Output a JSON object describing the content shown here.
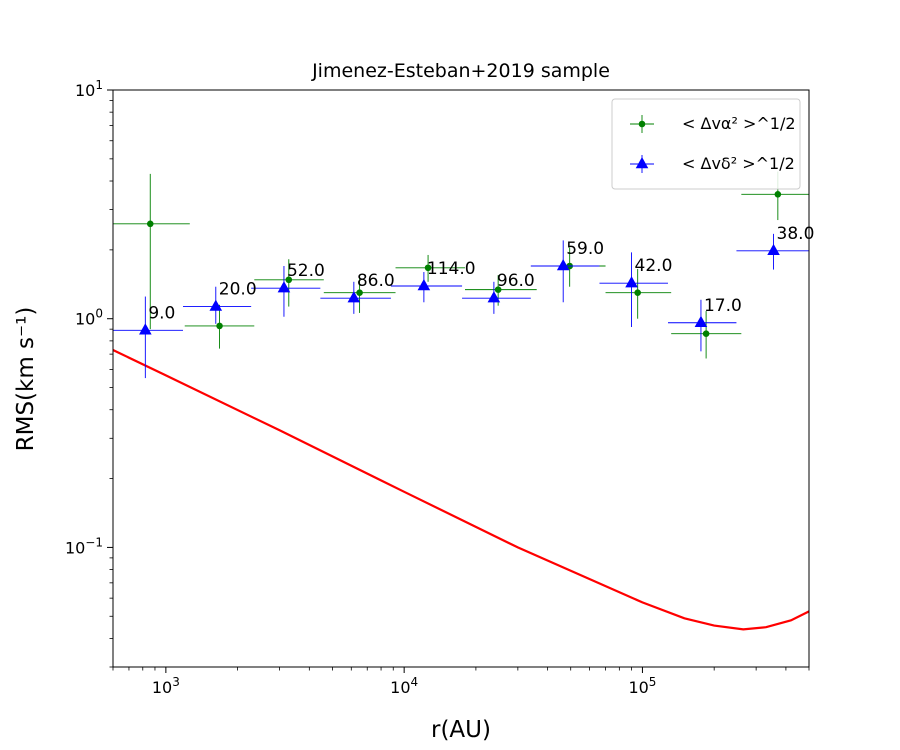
{
  "chart_data": {
    "type": "scatter",
    "title": "Jimenez-Esteban+2019 sample",
    "xlabel": "r(AU)",
    "ylabel": "RMS(km s⁻¹)",
    "xscale": "log",
    "yscale": "log",
    "xlim": [
      600,
      500000
    ],
    "ylim": [
      0.03,
      10
    ],
    "grid": false,
    "legend_position": "top-right",
    "x_major_ticks": [
      {
        "value": 1000,
        "base": "10",
        "exp": "3"
      },
      {
        "value": 10000,
        "base": "10",
        "exp": "4"
      },
      {
        "value": 100000,
        "base": "10",
        "exp": "5"
      }
    ],
    "y_major_ticks": [
      {
        "value": 0.1,
        "base": "10",
        "exp": "−1"
      },
      {
        "value": 1,
        "base": "10",
        "exp": "0"
      },
      {
        "value": 10,
        "base": "10",
        "exp": "1"
      }
    ],
    "series": [
      {
        "name": "< Δvα² >^1/2",
        "color": "#008000",
        "marker": "circle",
        "points": [
          {
            "x": 860,
            "y": 2.6,
            "x_lo": 590,
            "x_hi": 1260,
            "y_lo": 0.9,
            "y_hi": 4.3
          },
          {
            "x": 1680,
            "y": 0.93,
            "x_lo": 1200,
            "x_hi": 2350,
            "y_lo": 0.74,
            "y_hi": 1.15
          },
          {
            "x": 3280,
            "y": 1.48,
            "x_lo": 2350,
            "x_hi": 4600,
            "y_lo": 1.13,
            "y_hi": 1.82
          },
          {
            "x": 6500,
            "y": 1.3,
            "x_lo": 4600,
            "x_hi": 9200,
            "y_lo": 1.06,
            "y_hi": 1.55
          },
          {
            "x": 12600,
            "y": 1.67,
            "x_lo": 9200,
            "x_hi": 18000,
            "y_lo": 1.45,
            "y_hi": 1.9
          },
          {
            "x": 24800,
            "y": 1.34,
            "x_lo": 18000,
            "x_hi": 36000,
            "y_lo": 1.14,
            "y_hi": 1.55
          },
          {
            "x": 49500,
            "y": 1.7,
            "x_lo": 36000,
            "x_hi": 70000,
            "y_lo": 1.38,
            "y_hi": 2.05
          },
          {
            "x": 95500,
            "y": 1.3,
            "x_lo": 70000,
            "x_hi": 132000,
            "y_lo": 1.0,
            "y_hi": 1.65
          },
          {
            "x": 185000,
            "y": 0.86,
            "x_lo": 132000,
            "x_hi": 260000,
            "y_lo": 0.67,
            "y_hi": 1.08
          },
          {
            "x": 370000,
            "y": 3.5,
            "x_lo": 260000,
            "x_hi": 500000,
            "y_lo": 2.7,
            "y_hi": 4.4
          }
        ]
      },
      {
        "name": "< Δvδ² >^1/2",
        "color": "#0000ff",
        "marker": "triangle",
        "points": [
          {
            "x": 820,
            "y": 0.89,
            "x_lo": 590,
            "x_hi": 1180,
            "y_lo": 0.55,
            "y_hi": 1.25,
            "label": "9.0"
          },
          {
            "x": 1620,
            "y": 1.13,
            "x_lo": 1180,
            "x_hi": 2280,
            "y_lo": 0.95,
            "y_hi": 1.38,
            "label": "20.0"
          },
          {
            "x": 3130,
            "y": 1.36,
            "x_lo": 2280,
            "x_hi": 4450,
            "y_lo": 1.02,
            "y_hi": 1.7,
            "label": "52.0"
          },
          {
            "x": 6150,
            "y": 1.23,
            "x_lo": 4450,
            "x_hi": 8800,
            "y_lo": 1.05,
            "y_hi": 1.45,
            "label": "86.0"
          },
          {
            "x": 12100,
            "y": 1.39,
            "x_lo": 8800,
            "x_hi": 17500,
            "y_lo": 1.18,
            "y_hi": 1.6,
            "label": "114.0"
          },
          {
            "x": 23800,
            "y": 1.23,
            "x_lo": 17500,
            "x_hi": 34000,
            "y_lo": 1.05,
            "y_hi": 1.45,
            "label": "96.0"
          },
          {
            "x": 46500,
            "y": 1.7,
            "x_lo": 34000,
            "x_hi": 66000,
            "y_lo": 1.18,
            "y_hi": 2.2,
            "label": "59.0"
          },
          {
            "x": 90000,
            "y": 1.43,
            "x_lo": 66000,
            "x_hi": 128000,
            "y_lo": 0.92,
            "y_hi": 1.95,
            "label": "42.0"
          },
          {
            "x": 176000,
            "y": 0.96,
            "x_lo": 128000,
            "x_hi": 248000,
            "y_lo": 0.72,
            "y_hi": 1.21,
            "label": "17.0"
          },
          {
            "x": 355000,
            "y": 1.98,
            "x_lo": 248000,
            "x_hi": 500000,
            "y_lo": 1.64,
            "y_hi": 2.35,
            "label": "38.0"
          }
        ]
      },
      {
        "color": "#ff0000",
        "marker": "line",
        "points": [
          {
            "x": 600,
            "y": 0.73
          },
          {
            "x": 1000,
            "y": 0.565
          },
          {
            "x": 3000,
            "y": 0.325
          },
          {
            "x": 10000,
            "y": 0.175
          },
          {
            "x": 30000,
            "y": 0.1
          },
          {
            "x": 100000,
            "y": 0.0575
          },
          {
            "x": 150000,
            "y": 0.049
          },
          {
            "x": 200000,
            "y": 0.0455
          },
          {
            "x": 265000,
            "y": 0.0438
          },
          {
            "x": 330000,
            "y": 0.0448
          },
          {
            "x": 420000,
            "y": 0.048
          },
          {
            "x": 500000,
            "y": 0.0525
          }
        ]
      }
    ]
  }
}
